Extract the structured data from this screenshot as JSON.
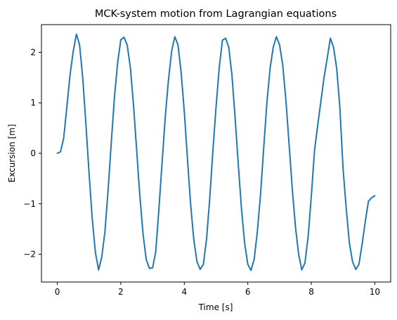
{
  "chart_data": {
    "type": "line",
    "title": "MCK-system motion from Lagrangian equations",
    "xlabel": "Time [s]",
    "ylabel": "Excursion [m]",
    "xlim": [
      -0.5,
      10.5
    ],
    "ylim": [
      -2.55,
      2.55
    ],
    "xticks": [
      0,
      2,
      4,
      6,
      8,
      10
    ],
    "yticks": [
      -2,
      -1,
      0,
      1,
      2
    ],
    "xtick_labels": [
      "0",
      "2",
      "4",
      "6",
      "8",
      "10"
    ],
    "ytick_labels": [
      "−2",
      "−1",
      "0",
      "1",
      "2"
    ],
    "grid": false,
    "legend": "none",
    "colors": {
      "line": "#1f77b4"
    },
    "series": [
      {
        "x": [
          0,
          0.1,
          0.2,
          0.3,
          0.4,
          0.5,
          0.6,
          0.7,
          0.8,
          0.9,
          1.0,
          1.1,
          1.2,
          1.3,
          1.4,
          1.5,
          1.6,
          1.7,
          1.8,
          1.9,
          2.0,
          2.1,
          2.2,
          2.3,
          2.4,
          2.5,
          2.6,
          2.7,
          2.8,
          2.9,
          3.0,
          3.1,
          3.2,
          3.3,
          3.4,
          3.5,
          3.6,
          3.7,
          3.8,
          3.9,
          4.0,
          4.1,
          4.2,
          4.3,
          4.4,
          4.5,
          4.6,
          4.7,
          4.8,
          4.9,
          5.0,
          5.1,
          5.2,
          5.3,
          5.4,
          5.5,
          5.6,
          5.7,
          5.8,
          5.9,
          6.0,
          6.1,
          6.2,
          6.3,
          6.4,
          6.5,
          6.6,
          6.7,
          6.8,
          6.9,
          7.0,
          7.1,
          7.2,
          7.3,
          7.4,
          7.5,
          7.6,
          7.7,
          7.8,
          7.9,
          8.0,
          8.1,
          8.2,
          8.3,
          8.4,
          8.5,
          8.6,
          8.7,
          8.8,
          8.9,
          9.0,
          9.1,
          9.2,
          9.3,
          9.4,
          9.5,
          9.6,
          9.7,
          9.8,
          9.9,
          10.0
        ],
        "y": [
          0,
          0.03,
          0.3,
          0.92,
          1.55,
          2.02,
          2.36,
          2.15,
          1.5,
          0.58,
          -0.4,
          -1.3,
          -1.97,
          -2.31,
          -2.05,
          -1.55,
          -0.72,
          0.22,
          1.12,
          1.8,
          2.25,
          2.3,
          2.15,
          1.7,
          0.95,
          0.05,
          -0.85,
          -1.6,
          -2.1,
          -2.28,
          -2.27,
          -1.95,
          -1.1,
          -0.18,
          0.72,
          1.45,
          2.02,
          2.31,
          2.15,
          1.6,
          0.82,
          -0.12,
          -1.02,
          -1.72,
          -2.15,
          -2.3,
          -2.2,
          -1.7,
          -0.9,
          0.05,
          0.92,
          1.7,
          2.24,
          2.28,
          2.1,
          1.55,
          0.7,
          -0.22,
          -1.1,
          -1.78,
          -2.2,
          -2.32,
          -2.1,
          -1.55,
          -0.82,
          0.1,
          1.0,
          1.68,
          2.1,
          2.31,
          2.15,
          1.75,
          1.05,
          0.18,
          -0.7,
          -1.45,
          -2.0,
          -2.31,
          -2.17,
          -1.65,
          -0.85,
          0.05,
          0.55,
          1.02,
          1.5,
          1.88,
          2.28,
          2.1,
          1.68,
          0.9,
          -0.3,
          -1.1,
          -1.78,
          -2.15,
          -2.3,
          -2.2,
          -1.8,
          -1.35,
          -0.95,
          -0.88,
          -0.84
        ]
      }
    ]
  }
}
